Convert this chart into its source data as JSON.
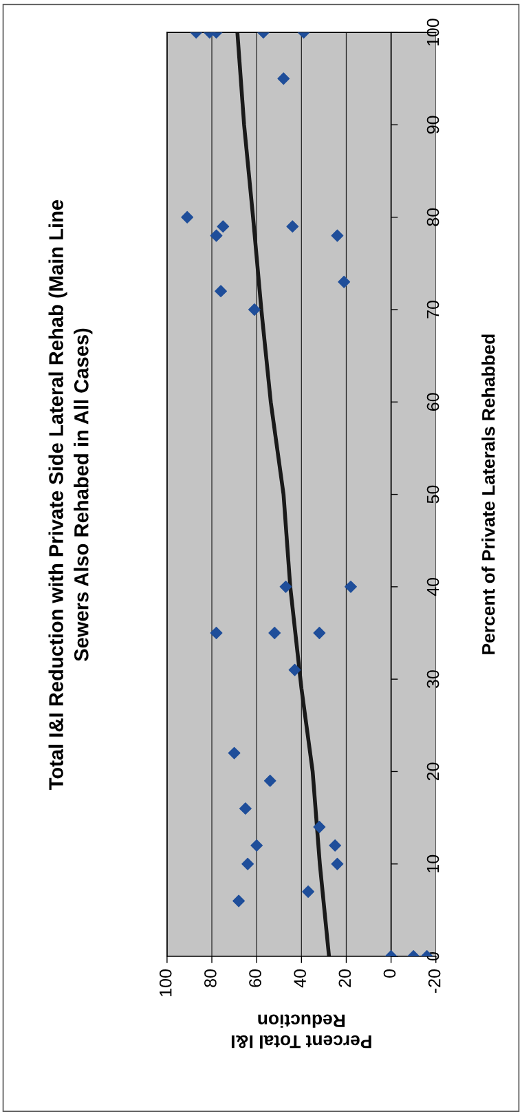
{
  "chart_data": {
    "type": "scatter",
    "title": "Total I&I Reduction with Private Side Lateral Rehab (Main Line\nSewers Also Rehabed in All Cases)",
    "xlabel": "Percent Total I&I\nReduction",
    "ylabel": "Percent of Private Laterals Rehabbed",
    "xlim": [
      100,
      -20
    ],
    "xticks": [
      -20,
      0,
      20,
      40,
      60,
      80,
      100
    ],
    "ylim": [
      0,
      100
    ],
    "yticks": [
      0,
      10,
      20,
      30,
      40,
      50,
      60,
      70,
      80,
      90,
      100
    ],
    "grid": "x",
    "legend": false,
    "series": [
      {
        "color": "#1f4e9a",
        "marker": "diamond",
        "x": [
          0,
          -10,
          -16,
          68,
          37,
          64,
          24,
          60,
          25,
          32,
          65,
          54,
          70,
          43,
          78,
          52,
          32,
          47,
          18,
          61,
          76,
          21,
          78,
          24,
          75,
          44,
          91,
          48,
          87,
          81,
          78,
          57,
          39
        ],
        "values": [
          0,
          0,
          0,
          6,
          7,
          10,
          10,
          12,
          12,
          14,
          16,
          19,
          22,
          31,
          35,
          35,
          35,
          40,
          40,
          70,
          72,
          73,
          78,
          78,
          79,
          79,
          80,
          95,
          100,
          100,
          100,
          100,
          100
        ]
      },
      {
        "type": "line",
        "color": "#1a1a1a",
        "marker": "none",
        "line_style": "solid",
        "x": [
          27.7,
          31.8,
          35,
          40,
          45,
          48,
          53.7,
          57.9,
          61.6,
          65.6,
          68.6
        ],
        "values": [
          0,
          10,
          20,
          29,
          40,
          50,
          60,
          70,
          80,
          90,
          100
        ]
      }
    ]
  }
}
